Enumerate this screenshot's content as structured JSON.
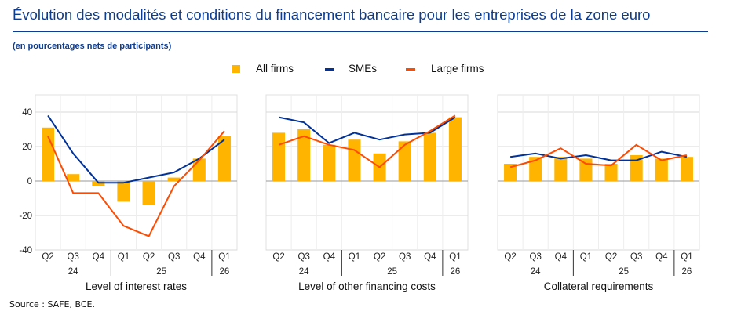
{
  "header": {
    "title": "Évolution des modalités et conditions du financement bancaire pour les entreprises de la zone euro",
    "subtitle": "(en pourcentages nets de participants)"
  },
  "source": "Source : SAFE, BCE.",
  "colors": {
    "bar": "#ffb400",
    "sme": "#003299",
    "large": "#ff4b00",
    "grid": "#d9d9d9",
    "title": "#0c3d91"
  },
  "chart_data": [
    {
      "type": "bar",
      "title": "Level of interest rates",
      "categories": [
        "Q2",
        "Q3",
        "Q4",
        "Q1",
        "Q2",
        "Q3",
        "Q4",
        "Q1"
      ],
      "year_labels": [
        {
          "label": "24",
          "from": 0,
          "to": 2
        },
        {
          "label": "25",
          "from": 3,
          "to": 6
        },
        {
          "label": "26",
          "from": 7,
          "to": 7
        }
      ],
      "ylim": [
        -40,
        50
      ],
      "yticks": [
        40,
        20,
        0,
        -20,
        -40
      ],
      "series": [
        {
          "name": "All firms",
          "kind": "bar",
          "values": [
            31,
            4,
            -3,
            -12,
            -14,
            2,
            13,
            26
          ]
        },
        {
          "name": "SMEs",
          "kind": "line",
          "values": [
            38,
            16,
            -1,
            -1,
            2,
            5,
            13,
            24
          ]
        },
        {
          "name": "Large firms",
          "kind": "line",
          "values": [
            26,
            -7,
            -7,
            -26,
            -32,
            -3,
            12,
            29
          ]
        }
      ]
    },
    {
      "type": "bar",
      "title": "Level of other financing costs",
      "categories": [
        "Q2",
        "Q3",
        "Q4",
        "Q1",
        "Q2",
        "Q3",
        "Q4",
        "Q1"
      ],
      "year_labels": [
        {
          "label": "24",
          "from": 0,
          "to": 2
        },
        {
          "label": "25",
          "from": 3,
          "to": 6
        },
        {
          "label": "26",
          "from": 7,
          "to": 7
        }
      ],
      "ylim": [
        -40,
        50
      ],
      "yticks": [
        40,
        20,
        0,
        -20,
        -40
      ],
      "series": [
        {
          "name": "All firms",
          "kind": "bar",
          "values": [
            28,
            30,
            21,
            24,
            16,
            23,
            28,
            37
          ]
        },
        {
          "name": "SMEs",
          "kind": "line",
          "values": [
            37,
            34,
            22,
            28,
            24,
            27,
            28,
            37
          ]
        },
        {
          "name": "Large firms",
          "kind": "line",
          "values": [
            21,
            26,
            21,
            18,
            8,
            21,
            29,
            38
          ]
        }
      ]
    },
    {
      "type": "bar",
      "title": "Collateral requirements",
      "categories": [
        "Q2",
        "Q3",
        "Q4",
        "Q1",
        "Q2",
        "Q3",
        "Q4",
        "Q1"
      ],
      "year_labels": [
        {
          "label": "24",
          "from": 0,
          "to": 2
        },
        {
          "label": "25",
          "from": 3,
          "to": 6
        },
        {
          "label": "26",
          "from": 7,
          "to": 7
        }
      ],
      "ylim": [
        -40,
        50
      ],
      "yticks": [
        40,
        20,
        0,
        -20,
        -40
      ],
      "series": [
        {
          "name": "All firms",
          "kind": "bar",
          "values": [
            10,
            14,
            14,
            13,
            10,
            15,
            13,
            14
          ]
        },
        {
          "name": "SMEs",
          "kind": "line",
          "values": [
            14,
            16,
            13,
            15,
            12,
            12,
            17,
            14
          ]
        },
        {
          "name": "Large firms",
          "kind": "line",
          "values": [
            8,
            12,
            19,
            10,
            9,
            21,
            12,
            15
          ]
        }
      ]
    }
  ]
}
